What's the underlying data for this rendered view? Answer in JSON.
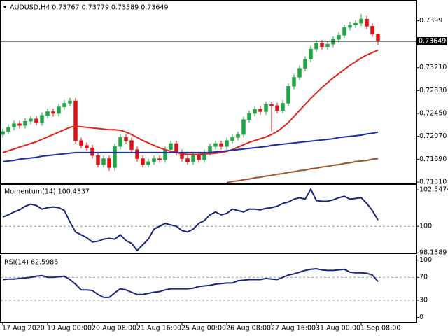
{
  "chart_data": [
    {
      "type": "candlestick",
      "title": "AUDUSD,H4 0.73767 0.73779 0.73589 0.73649",
      "categories": [
        "17 Aug 2020",
        null,
        null,
        null,
        null,
        null,
        null,
        null,
        "19 Aug 00:00",
        null,
        null,
        null,
        null,
        null,
        null,
        null,
        "20 Aug 08:00",
        null,
        null,
        null,
        null,
        null,
        null,
        null,
        "21 Aug 16:00",
        null,
        null,
        null,
        null,
        null,
        null,
        null,
        "25 Aug 00:00",
        null,
        null,
        null,
        null,
        null,
        null,
        null,
        "26 Aug 08:00",
        null,
        null,
        null,
        null,
        null,
        null,
        null,
        "27 Aug 16:00",
        null,
        null,
        null,
        null,
        null,
        null,
        null,
        "31 Aug 00:00",
        null,
        null,
        null,
        null,
        null,
        null,
        null,
        "1 Sep 08:00",
        null,
        null,
        null
      ],
      "open": [
        0.721,
        0.7215,
        0.7222,
        0.7228,
        0.7225,
        0.7232,
        0.7236,
        0.723,
        0.7242,
        0.7248,
        0.7245,
        0.7256,
        0.7262,
        0.7266,
        0.72,
        0.7192,
        0.7188,
        0.7175,
        0.716,
        0.717,
        0.7155,
        0.719,
        0.7205,
        0.72,
        0.7185,
        0.717,
        0.716,
        0.7165,
        0.717,
        0.7168,
        0.7185,
        0.7195,
        0.718,
        0.717,
        0.7165,
        0.7175,
        0.7168,
        0.718,
        0.719,
        0.7195,
        0.719,
        0.72,
        0.7205,
        0.721,
        0.7235,
        0.7245,
        0.7252,
        0.7248,
        0.726,
        0.7258,
        0.725,
        0.7262,
        0.729,
        0.7305,
        0.732,
        0.7335,
        0.7352,
        0.7362,
        0.7356,
        0.736,
        0.7368,
        0.7375,
        0.7388,
        0.7392,
        0.7395,
        0.7402,
        0.739,
        0.73767
      ],
      "high": [
        0.722,
        0.7227,
        0.7233,
        0.7233,
        0.7237,
        0.7241,
        0.7241,
        0.7247,
        0.7253,
        0.7253,
        0.7261,
        0.7267,
        0.7271,
        0.7271,
        0.7205,
        0.7197,
        0.7193,
        0.718,
        0.7175,
        0.7175,
        0.7195,
        0.721,
        0.721,
        0.7205,
        0.719,
        0.7175,
        0.717,
        0.7175,
        0.7175,
        0.719,
        0.72,
        0.72,
        0.7185,
        0.7175,
        0.718,
        0.718,
        0.7185,
        0.7195,
        0.72,
        0.72,
        0.7205,
        0.721,
        0.7215,
        0.724,
        0.725,
        0.7257,
        0.7257,
        0.7265,
        0.7265,
        0.7263,
        0.7267,
        0.7295,
        0.731,
        0.7325,
        0.734,
        0.7357,
        0.7367,
        0.7367,
        0.7365,
        0.7373,
        0.738,
        0.7393,
        0.7397,
        0.74,
        0.741,
        0.7407,
        0.7395,
        0.73779
      ],
      "low": [
        0.7205,
        0.721,
        0.7217,
        0.722,
        0.722,
        0.7227,
        0.7225,
        0.7225,
        0.7237,
        0.724,
        0.724,
        0.7251,
        0.7257,
        0.7195,
        0.7187,
        0.7183,
        0.717,
        0.7155,
        0.7155,
        0.715,
        0.715,
        0.7185,
        0.7195,
        0.718,
        0.7165,
        0.7155,
        0.7155,
        0.716,
        0.7163,
        0.7163,
        0.718,
        0.7175,
        0.7165,
        0.716,
        0.716,
        0.7163,
        0.7163,
        0.7175,
        0.7185,
        0.7185,
        0.7185,
        0.7195,
        0.72,
        0.7205,
        0.723,
        0.724,
        0.7243,
        0.7243,
        0.7215,
        0.7245,
        0.7245,
        0.7257,
        0.7285,
        0.73,
        0.7315,
        0.733,
        0.7347,
        0.7351,
        0.7351,
        0.7355,
        0.7363,
        0.737,
        0.7383,
        0.7387,
        0.739,
        0.7385,
        0.7372,
        0.73589
      ],
      "close": [
        0.7215,
        0.7222,
        0.7228,
        0.7225,
        0.7232,
        0.7236,
        0.723,
        0.7242,
        0.7248,
        0.7245,
        0.7256,
        0.7262,
        0.7266,
        0.72,
        0.7192,
        0.7188,
        0.7175,
        0.716,
        0.717,
        0.7155,
        0.719,
        0.7205,
        0.72,
        0.7185,
        0.717,
        0.716,
        0.7165,
        0.717,
        0.7168,
        0.7185,
        0.7195,
        0.718,
        0.717,
        0.7165,
        0.7175,
        0.7168,
        0.718,
        0.719,
        0.7195,
        0.719,
        0.72,
        0.7205,
        0.721,
        0.7235,
        0.7245,
        0.7252,
        0.7248,
        0.726,
        0.7258,
        0.725,
        0.7262,
        0.729,
        0.7305,
        0.732,
        0.7335,
        0.7352,
        0.7362,
        0.7356,
        0.736,
        0.7368,
        0.7375,
        0.7388,
        0.7392,
        0.7395,
        0.7402,
        0.739,
        0.73767,
        0.73649
      ],
      "up_color": "#1fa642",
      "down_color": "#e01010",
      "series": [
        {
          "color": "#e3241b",
          "values": [
            0.718,
            0.7183,
            0.7186,
            0.7189,
            0.7192,
            0.7195,
            0.7198,
            0.7202,
            0.7206,
            0.721,
            0.7214,
            0.7218,
            0.7222,
            0.7224,
            0.7223,
            0.7222,
            0.7221,
            0.722,
            0.7219,
            0.7218,
            0.7218,
            0.7217,
            0.7214,
            0.721,
            0.7205,
            0.72,
            0.7196,
            0.7192,
            0.7188,
            0.7185,
            0.7182,
            0.718,
            0.7178,
            0.7177,
            0.7177,
            0.7177,
            0.7178,
            0.7178,
            0.7179,
            0.718,
            0.7182,
            0.7185,
            0.7189,
            0.7193,
            0.7197,
            0.72,
            0.7203,
            0.7206,
            0.721,
            0.7215,
            0.7222,
            0.723,
            0.724,
            0.725,
            0.726,
            0.727,
            0.7279,
            0.7288,
            0.7296,
            0.7304,
            0.7311,
            0.7318,
            0.7325,
            0.7331,
            0.7337,
            0.7342,
            0.7346,
            0.735
          ]
        },
        {
          "color": "#1a2ea8",
          "values": [
            0.7165,
            0.7166,
            0.7167,
            0.7169,
            0.717,
            0.7171,
            0.7172,
            0.7174,
            0.7175,
            0.7176,
            0.7177,
            0.7178,
            0.7179,
            0.718,
            0.718,
            0.718,
            0.718,
            0.718,
            0.718,
            0.718,
            0.718,
            0.718,
            0.718,
            0.718,
            0.718,
            0.718,
            0.718,
            0.718,
            0.718,
            0.718,
            0.718,
            0.718,
            0.718,
            0.718,
            0.718,
            0.718,
            0.718,
            0.718,
            0.7181,
            0.7182,
            0.7183,
            0.7184,
            0.7185,
            0.7186,
            0.7187,
            0.7188,
            0.7189,
            0.719,
            0.7192,
            0.7193,
            0.7194,
            0.7195,
            0.7196,
            0.7197,
            0.7198,
            0.7199,
            0.72,
            0.7201,
            0.7202,
            0.7203,
            0.7205,
            0.7206,
            0.7207,
            0.7208,
            0.7209,
            0.7211,
            0.7212,
            0.7214
          ]
        },
        {
          "color": "#a0522d",
          "values": [
            null,
            null,
            null,
            null,
            null,
            null,
            null,
            null,
            null,
            null,
            null,
            null,
            null,
            null,
            null,
            null,
            null,
            null,
            null,
            null,
            null,
            null,
            null,
            null,
            null,
            null,
            null,
            null,
            null,
            null,
            null,
            null,
            null,
            null,
            null,
            null,
            null,
            null,
            null,
            null,
            0.713,
            0.7132,
            0.7133,
            0.7135,
            0.7136,
            0.7138,
            0.7139,
            0.7141,
            0.7142,
            0.7144,
            0.7145,
            0.7147,
            0.7148,
            0.715,
            0.7151,
            0.7153,
            0.7154,
            0.7156,
            0.7157,
            0.7159,
            0.716,
            0.7162,
            0.7163,
            0.7165,
            0.7166,
            0.7167,
            0.7169,
            0.717
          ]
        }
      ],
      "last_price": 0.73649,
      "ylim": [
        0.71287,
        0.74312
      ],
      "yticks": [
        {
          "value": 0.7131,
          "label": "0.71310"
        },
        {
          "value": 0.7169,
          "label": "0.71690"
        },
        {
          "value": 0.7207,
          "label": "0.72070"
        },
        {
          "value": 0.7245,
          "label": "0.72450"
        },
        {
          "value": 0.7283,
          "label": "0.72830"
        },
        {
          "value": 0.7321,
          "label": "0.73210"
        },
        0.7399
      ]
    },
    {
      "type": "line",
      "title": "Momentum(14) 100.4337",
      "color": "#1a237e",
      "values": [
        100.65,
        100.8,
        101.0,
        101.15,
        101.4,
        101.55,
        101.45,
        101.2,
        101.3,
        101.35,
        101.3,
        101.1,
        100.3,
        99.6,
        99.4,
        99.2,
        98.9,
        98.95,
        99.1,
        99.15,
        99.1,
        99.4,
        99.0,
        98.8,
        98.3,
        98.7,
        99.1,
        99.8,
        100.0,
        100.2,
        100.1,
        100.0,
        99.7,
        99.6,
        99.8,
        100.2,
        100.4,
        100.8,
        101.0,
        100.8,
        100.9,
        101.2,
        101.1,
        101.0,
        101.2,
        101.2,
        101.15,
        101.25,
        101.3,
        101.4,
        101.6,
        101.7,
        101.9,
        102.0,
        101.9,
        102.6,
        101.8,
        101.75,
        101.75,
        101.85,
        102.0,
        102.1,
        101.9,
        101.95,
        102.0,
        101.6,
        101.1,
        100.4337
      ],
      "ylim": [
        98.1,
        102.85
      ],
      "yticks": [
        98.1389,
        100,
        102.5474
      ],
      "levels": [
        100
      ]
    },
    {
      "type": "line",
      "title": "RSI(14) 62.5985",
      "color": "#1a237e",
      "values": [
        66,
        67,
        67,
        68,
        69,
        70,
        72,
        73,
        70,
        70,
        71,
        72,
        66,
        58,
        48,
        48,
        47,
        40,
        35,
        35,
        43,
        50,
        48,
        44,
        40,
        40,
        42,
        44,
        45,
        48,
        50,
        50,
        50,
        50,
        51,
        54,
        55,
        56,
        58,
        59,
        60,
        60,
        64,
        65,
        66,
        66,
        66,
        68,
        67,
        66,
        70,
        74,
        76,
        79,
        82,
        84,
        85,
        83,
        82,
        82,
        83,
        84,
        79,
        78,
        78,
        77,
        74,
        62.5985
      ],
      "ylim": [
        -8,
        107
      ],
      "yticks": [
        0,
        30,
        70,
        100
      ],
      "levels": [
        30,
        70
      ]
    }
  ]
}
